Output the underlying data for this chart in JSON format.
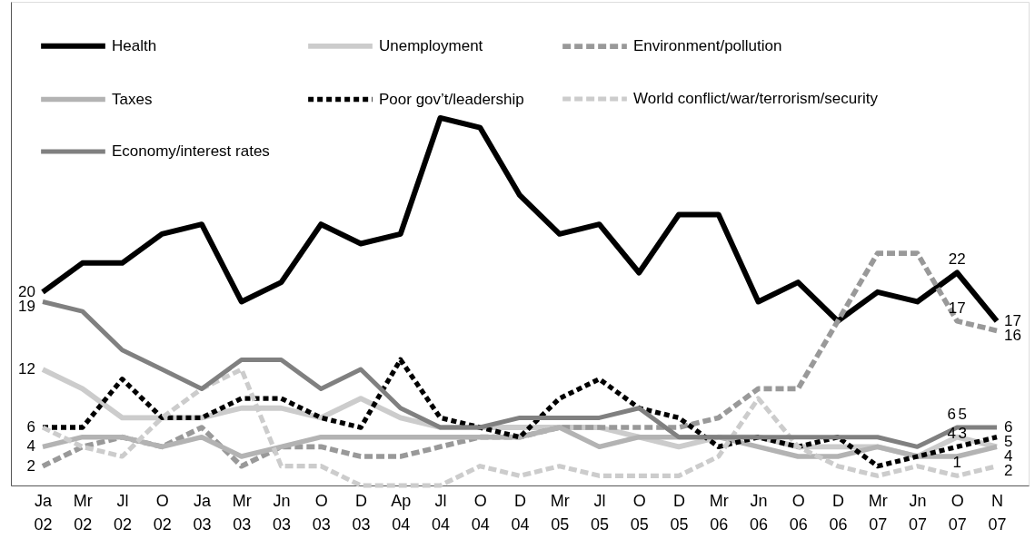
{
  "chart_data": {
    "type": "line",
    "categories": [
      "Ja 02",
      "Mr 02",
      "Jl 02",
      "O 02",
      "Ja 03",
      "Mr 03",
      "Jn 03",
      "O 03",
      "D 03",
      "Ap 04",
      "Jl 04",
      "O 04",
      "D 04",
      "Mr 05",
      "Jl 05",
      "O 05",
      "D 05",
      "Mr 06",
      "Jn 06",
      "O 06",
      "D 06",
      "Mr 07",
      "Jn 07",
      "O 07",
      "N 07"
    ],
    "ylim": [
      0,
      50
    ],
    "tick_labels": "x",
    "grid": false,
    "legend": "top left",
    "marker": "none",
    "series": [
      {
        "name": "Health",
        "color": "#000000",
        "line_style": "solid",
        "values": [
          20,
          23,
          23,
          26,
          27,
          19,
          21,
          27,
          25,
          26,
          38,
          37,
          30,
          26,
          27,
          22,
          28,
          28,
          19,
          21,
          17,
          20,
          19,
          22,
          17
        ],
        "value_labels": [
          "20",
          null,
          null,
          null,
          null,
          null,
          null,
          null,
          null,
          null,
          null,
          null,
          null,
          null,
          null,
          null,
          null,
          null,
          null,
          null,
          null,
          null,
          null,
          "22",
          "17"
        ]
      },
      {
        "name": "Unemployment",
        "color": "#cccccc",
        "line_style": "solid",
        "values": [
          12,
          10,
          7,
          7,
          7,
          8,
          8,
          7,
          9,
          7,
          6,
          6,
          6,
          6,
          6,
          5,
          4,
          5,
          5,
          4,
          4,
          4,
          3,
          5,
          4
        ],
        "value_labels": [
          "12",
          null,
          null,
          null,
          null,
          null,
          null,
          null,
          null,
          null,
          null,
          null,
          null,
          null,
          null,
          null,
          null,
          null,
          null,
          null,
          null,
          null,
          null,
          "5",
          "4"
        ]
      },
      {
        "name": "Environment/pollution",
        "color": "#999999",
        "line_style": "dashed",
        "values": [
          2,
          4,
          5,
          4,
          6,
          2,
          4,
          4,
          3,
          3,
          4,
          5,
          5,
          6,
          6,
          6,
          6,
          7,
          10,
          10,
          17,
          24,
          24,
          17,
          16
        ],
        "value_labels": [
          "2",
          null,
          null,
          null,
          null,
          null,
          null,
          null,
          null,
          null,
          null,
          null,
          null,
          null,
          null,
          null,
          null,
          null,
          null,
          null,
          null,
          null,
          null,
          "17",
          "16"
        ]
      },
      {
        "name": "Taxes",
        "color": "#b3b3b3",
        "line_style": "solid",
        "values": [
          4,
          5,
          5,
          4,
          5,
          3,
          4,
          5,
          5,
          5,
          5,
          5,
          5,
          6,
          4,
          5,
          5,
          5,
          4,
          3,
          3,
          4,
          3,
          3,
          4
        ],
        "value_labels": [
          "4",
          null,
          null,
          null,
          null,
          null,
          null,
          null,
          null,
          null,
          null,
          null,
          null,
          null,
          null,
          null,
          null,
          null,
          null,
          null,
          null,
          null,
          null,
          "3",
          null
        ]
      },
      {
        "name": "Poor gov’t/leadership",
        "color": "#000000",
        "line_style": "dotted",
        "values": [
          6,
          6,
          11,
          7,
          7,
          9,
          9,
          7,
          6,
          13,
          7,
          6,
          5,
          9,
          11,
          8,
          7,
          4,
          5,
          4,
          5,
          2,
          3,
          4,
          5
        ],
        "value_labels": [
          "6",
          null,
          null,
          null,
          null,
          null,
          null,
          null,
          null,
          null,
          null,
          null,
          null,
          null,
          null,
          null,
          null,
          null,
          null,
          null,
          null,
          null,
          null,
          "4",
          "5"
        ]
      },
      {
        "name": "World conflict/war/terrorism/security",
        "color": "#cccccc",
        "line_style": "dashed",
        "values": [
          6,
          4,
          3,
          7,
          10,
          12,
          2,
          2,
          0,
          0,
          0,
          2,
          1,
          2,
          1,
          1,
          1,
          3,
          9,
          4,
          2,
          1,
          2,
          1,
          2
        ],
        "value_labels": [
          null,
          null,
          null,
          null,
          null,
          null,
          null,
          null,
          null,
          null,
          null,
          null,
          null,
          null,
          null,
          null,
          null,
          null,
          null,
          null,
          null,
          null,
          null,
          "1",
          "2"
        ]
      },
      {
        "name": "Economy/interest rates",
        "color": "#808080",
        "line_style": "solid",
        "values": [
          19,
          18,
          14,
          12,
          10,
          13,
          13,
          10,
          12,
          8,
          6,
          6,
          7,
          7,
          7,
          8,
          5,
          5,
          5,
          5,
          5,
          5,
          4,
          6,
          6
        ],
        "value_labels": [
          "19",
          null,
          null,
          null,
          null,
          null,
          null,
          null,
          null,
          null,
          null,
          null,
          null,
          null,
          null,
          null,
          null,
          null,
          null,
          null,
          null,
          null,
          null,
          "6",
          "6"
        ]
      }
    ]
  }
}
